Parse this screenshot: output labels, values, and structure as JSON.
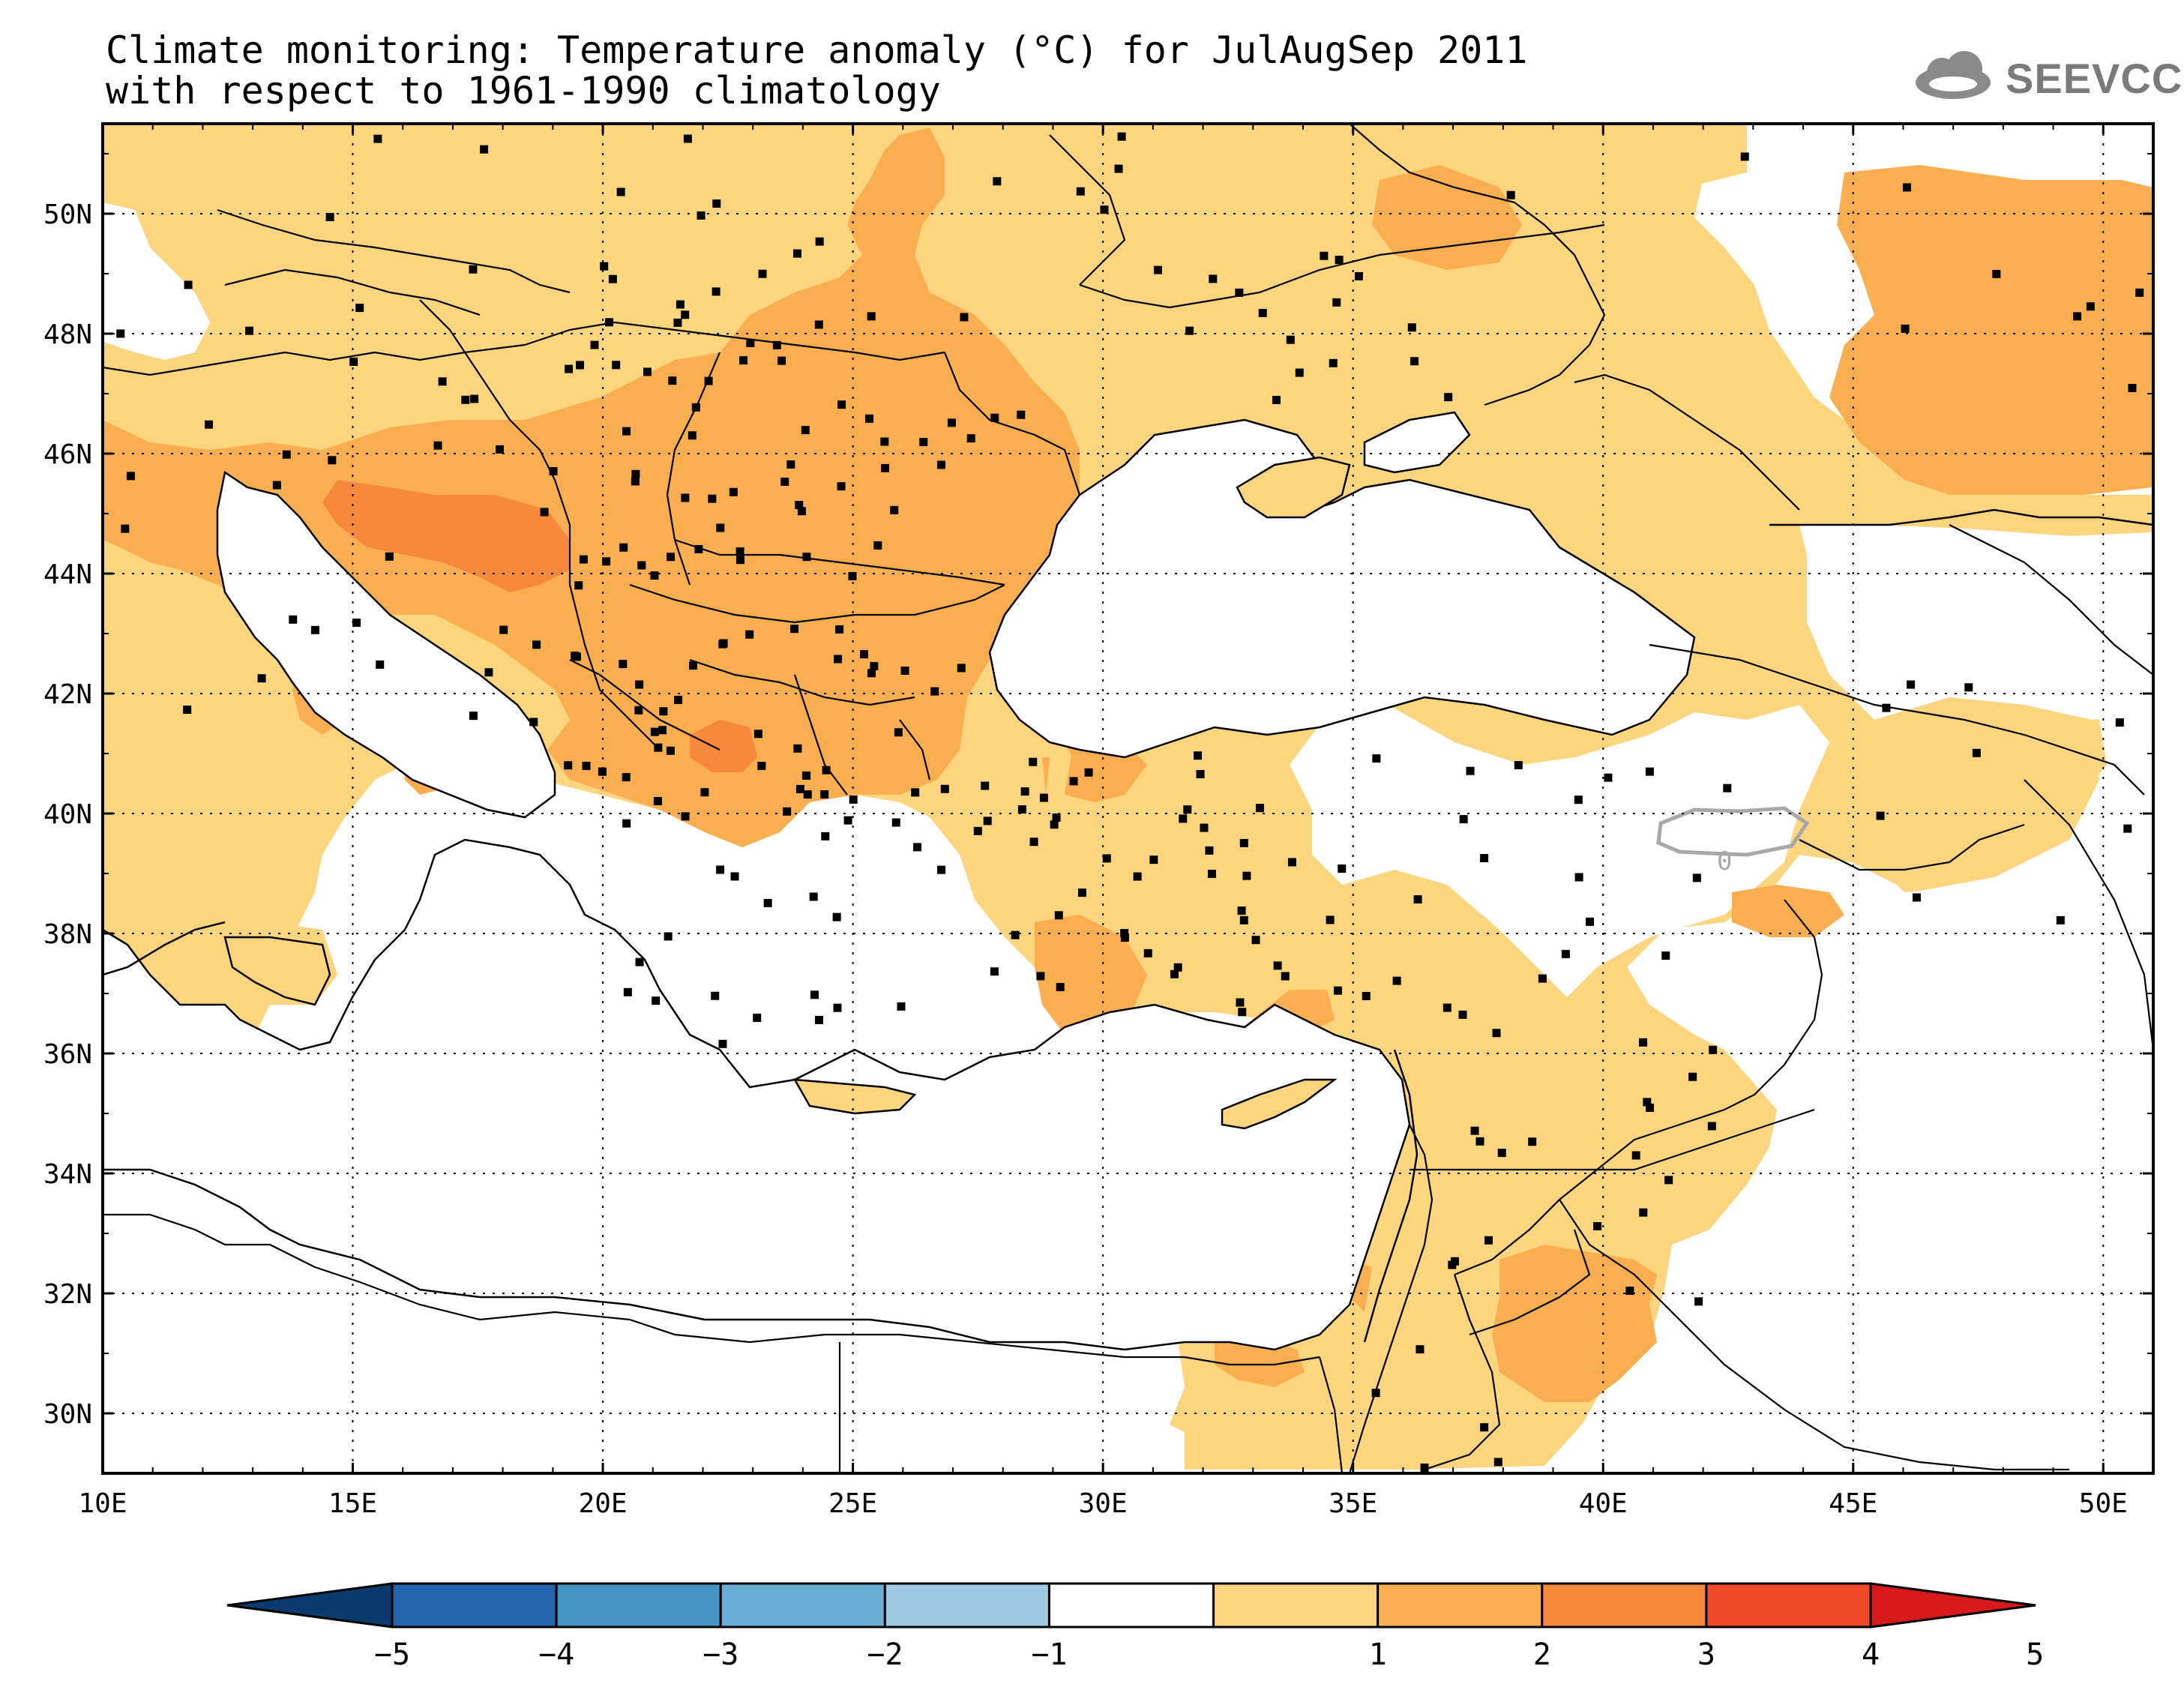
{
  "title": {
    "line1": "Climate monitoring: Temperature anomaly (°C) for JulAugSep 2011",
    "line2": "with respect to 1961-1990 climatology"
  },
  "logo": {
    "text": "SEEVCCC",
    "icon": "cloud-icon",
    "color": "#7a7a7a"
  },
  "map": {
    "lon_range": [
      10,
      51
    ],
    "lat_range": [
      29,
      51.5
    ],
    "lat_ticks": [
      "50N",
      "48N",
      "46N",
      "44N",
      "42N",
      "40N",
      "38N",
      "36N",
      "34N",
      "32N",
      "30N"
    ],
    "lat_values": [
      50,
      48,
      46,
      44,
      42,
      40,
      38,
      36,
      34,
      32,
      30
    ],
    "lon_ticks": [
      "10E",
      "15E",
      "20E",
      "25E",
      "30E",
      "35E",
      "40E",
      "45E",
      "50E"
    ],
    "lon_values": [
      10,
      15,
      20,
      25,
      30,
      35,
      40,
      45,
      50
    ],
    "contour_label": "0",
    "colors": {
      "a1_2": "#fdd57e",
      "a2_3": "#fbae50",
      "a3_4": "#f7893d",
      "sea": "#ffffff"
    }
  },
  "colorbar": {
    "labels": [
      "-5",
      "-4",
      "-3",
      "-2",
      "-1",
      "1",
      "2",
      "3",
      "4",
      "5"
    ],
    "colors": [
      "#0b3a6e",
      "#2166ac",
      "#4393c3",
      "#6aaed6",
      "#9ecae1",
      "#ffffff",
      "#fdd57e",
      "#fbae50",
      "#f7893d",
      "#f04a28",
      "#d7191c"
    ]
  }
}
